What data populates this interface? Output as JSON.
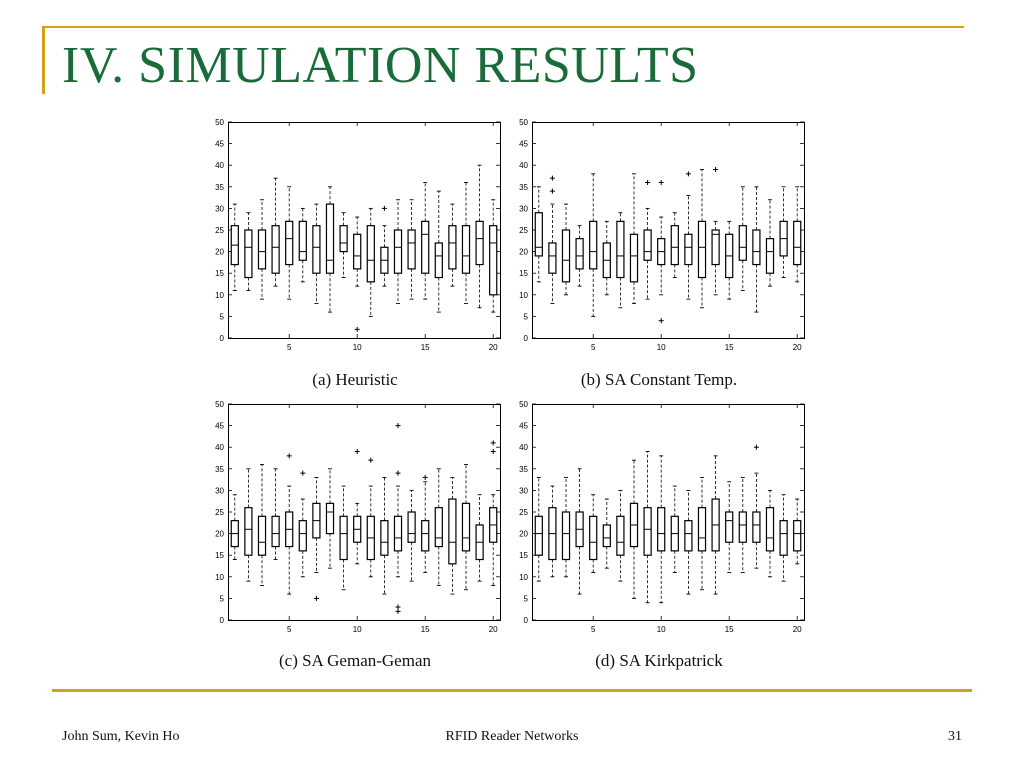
{
  "slide": {
    "title": "IV. SIMULATION RESULTS",
    "footer_left": "John Sum, Kevin Ho",
    "footer_center": "RFID Reader Networks",
    "footer_right": "31",
    "title_color": "#1a6b3a",
    "accent_color": "#d4a020"
  },
  "chart_data": [
    {
      "type": "box",
      "title": "(a) Heuristic",
      "x_ticks": [
        5,
        10,
        15,
        20
      ],
      "ylim": [
        0,
        50
      ],
      "y_ticks": [
        0,
        5,
        10,
        15,
        20,
        25,
        30,
        35,
        40,
        45,
        50
      ],
      "boxes": [
        {
          "x": 1,
          "min": 11,
          "q1": 17,
          "med": 21.5,
          "q3": 26,
          "max": 31,
          "outliers": []
        },
        {
          "x": 2,
          "min": 11,
          "q1": 14,
          "med": 21,
          "q3": 25,
          "max": 29,
          "outliers": []
        },
        {
          "x": 3,
          "min": 9,
          "q1": 16,
          "med": 20,
          "q3": 25,
          "max": 32,
          "outliers": []
        },
        {
          "x": 4,
          "min": 12,
          "q1": 15,
          "med": 21,
          "q3": 26,
          "max": 37,
          "outliers": []
        },
        {
          "x": 5,
          "min": 9,
          "q1": 17,
          "med": 23,
          "q3": 27,
          "max": 35,
          "outliers": []
        },
        {
          "x": 6,
          "min": 13,
          "q1": 18,
          "med": 20,
          "q3": 27,
          "max": 30,
          "outliers": []
        },
        {
          "x": 7,
          "min": 8,
          "q1": 15,
          "med": 21,
          "q3": 26,
          "max": 31,
          "outliers": []
        },
        {
          "x": 8,
          "min": 6,
          "q1": 15,
          "med": 18,
          "q3": 31,
          "max": 35,
          "outliers": []
        },
        {
          "x": 9,
          "min": 14,
          "q1": 20,
          "med": 22,
          "q3": 26,
          "max": 29,
          "outliers": []
        },
        {
          "x": 10,
          "min": 12,
          "q1": 16,
          "med": 19,
          "q3": 24,
          "max": 28,
          "outliers": [
            2
          ]
        },
        {
          "x": 11,
          "min": 5,
          "q1": 13,
          "med": 18,
          "q3": 26,
          "max": 30,
          "outliers": []
        },
        {
          "x": 12,
          "min": 12,
          "q1": 15,
          "med": 18,
          "q3": 21,
          "max": 26,
          "outliers": [
            30
          ]
        },
        {
          "x": 13,
          "min": 8,
          "q1": 15,
          "med": 21,
          "q3": 25,
          "max": 32,
          "outliers": []
        },
        {
          "x": 14,
          "min": 9,
          "q1": 16,
          "med": 22,
          "q3": 25,
          "max": 32,
          "outliers": []
        },
        {
          "x": 15,
          "min": 9,
          "q1": 15,
          "med": 24,
          "q3": 27,
          "max": 36,
          "outliers": []
        },
        {
          "x": 16,
          "min": 6,
          "q1": 14,
          "med": 19,
          "q3": 22,
          "max": 34,
          "outliers": []
        },
        {
          "x": 17,
          "min": 12,
          "q1": 16,
          "med": 22,
          "q3": 26,
          "max": 31,
          "outliers": []
        },
        {
          "x": 18,
          "min": 8,
          "q1": 15,
          "med": 19,
          "q3": 26,
          "max": 36,
          "outliers": []
        },
        {
          "x": 19,
          "min": 7,
          "q1": 17,
          "med": 23,
          "q3": 27,
          "max": 40,
          "outliers": []
        },
        {
          "x": 20,
          "min": 6,
          "q1": 10,
          "med": 22,
          "q3": 26,
          "max": 32,
          "outliers": []
        }
      ]
    },
    {
      "type": "box",
      "title": "(b) SA Constant Temp.",
      "x_ticks": [
        5,
        10,
        15,
        20
      ],
      "ylim": [
        0,
        50
      ],
      "y_ticks": [
        0,
        5,
        10,
        15,
        20,
        25,
        30,
        35,
        40,
        45,
        50
      ],
      "boxes": [
        {
          "x": 1,
          "min": 13,
          "q1": 19,
          "med": 21,
          "q3": 29,
          "max": 35,
          "outliers": []
        },
        {
          "x": 2,
          "min": 8,
          "q1": 15,
          "med": 19,
          "q3": 22,
          "max": 31,
          "outliers": [
            34,
            37
          ]
        },
        {
          "x": 3,
          "min": 10,
          "q1": 13,
          "med": 18,
          "q3": 25,
          "max": 31,
          "outliers": []
        },
        {
          "x": 4,
          "min": 12,
          "q1": 16,
          "med": 19,
          "q3": 23,
          "max": 26,
          "outliers": []
        },
        {
          "x": 5,
          "min": 5,
          "q1": 16,
          "med": 20,
          "q3": 27,
          "max": 38,
          "outliers": []
        },
        {
          "x": 6,
          "min": 10,
          "q1": 14,
          "med": 18,
          "q3": 22,
          "max": 27,
          "outliers": []
        },
        {
          "x": 7,
          "min": 7,
          "q1": 14,
          "med": 19,
          "q3": 27,
          "max": 29,
          "outliers": []
        },
        {
          "x": 8,
          "min": 8,
          "q1": 13,
          "med": 19,
          "q3": 24,
          "max": 38,
          "outliers": []
        },
        {
          "x": 9,
          "min": 9,
          "q1": 18,
          "med": 20,
          "q3": 25,
          "max": 30,
          "outliers": [
            36
          ]
        },
        {
          "x": 10,
          "min": 10,
          "q1": 17,
          "med": 20,
          "q3": 23,
          "max": 28,
          "outliers": [
            4,
            36
          ]
        },
        {
          "x": 11,
          "min": 14,
          "q1": 17,
          "med": 21,
          "q3": 26,
          "max": 29,
          "outliers": []
        },
        {
          "x": 12,
          "min": 9,
          "q1": 17,
          "med": 21,
          "q3": 24,
          "max": 33,
          "outliers": [
            38
          ]
        },
        {
          "x": 13,
          "min": 7,
          "q1": 14,
          "med": 21,
          "q3": 27,
          "max": 39,
          "outliers": []
        },
        {
          "x": 14,
          "min": 10,
          "q1": 17,
          "med": 24,
          "q3": 25,
          "max": 27,
          "outliers": [
            39
          ]
        },
        {
          "x": 15,
          "min": 9,
          "q1": 14,
          "med": 19,
          "q3": 24,
          "max": 27,
          "outliers": []
        },
        {
          "x": 16,
          "min": 11,
          "q1": 18,
          "med": 21,
          "q3": 26,
          "max": 35,
          "outliers": []
        },
        {
          "x": 17,
          "min": 6,
          "q1": 17,
          "med": 20,
          "q3": 25,
          "max": 35,
          "outliers": []
        },
        {
          "x": 18,
          "min": 12,
          "q1": 15,
          "med": 20,
          "q3": 23,
          "max": 32,
          "outliers": []
        },
        {
          "x": 19,
          "min": 14,
          "q1": 19,
          "med": 23,
          "q3": 27,
          "max": 35,
          "outliers": []
        },
        {
          "x": 20,
          "min": 13,
          "q1": 17,
          "med": 21,
          "q3": 27,
          "max": 35,
          "outliers": []
        }
      ]
    },
    {
      "type": "box",
      "title": "(c) SA Geman-Geman",
      "x_ticks": [
        5,
        10,
        15,
        20
      ],
      "ylim": [
        0,
        50
      ],
      "y_ticks": [
        0,
        5,
        10,
        15,
        20,
        25,
        30,
        35,
        40,
        45,
        50
      ],
      "boxes": [
        {
          "x": 1,
          "min": 14,
          "q1": 17,
          "med": 20,
          "q3": 23,
          "max": 29,
          "outliers": []
        },
        {
          "x": 2,
          "min": 9,
          "q1": 15,
          "med": 21,
          "q3": 26,
          "max": 35,
          "outliers": []
        },
        {
          "x": 3,
          "min": 8,
          "q1": 15,
          "med": 18,
          "q3": 24,
          "max": 36,
          "outliers": []
        },
        {
          "x": 4,
          "min": 14,
          "q1": 17,
          "med": 20,
          "q3": 24,
          "max": 35,
          "outliers": []
        },
        {
          "x": 5,
          "min": 6,
          "q1": 17,
          "med": 21,
          "q3": 25,
          "max": 31,
          "outliers": [
            38
          ]
        },
        {
          "x": 6,
          "min": 10,
          "q1": 16,
          "med": 20,
          "q3": 23,
          "max": 28,
          "outliers": [
            34
          ]
        },
        {
          "x": 7,
          "min": 11,
          "q1": 19,
          "med": 23,
          "q3": 27,
          "max": 33,
          "outliers": [
            5
          ]
        },
        {
          "x": 8,
          "min": 12,
          "q1": 20,
          "med": 25,
          "q3": 27,
          "max": 35,
          "outliers": []
        },
        {
          "x": 9,
          "min": 7,
          "q1": 14,
          "med": 20,
          "q3": 24,
          "max": 31,
          "outliers": []
        },
        {
          "x": 10,
          "min": 13,
          "q1": 18,
          "med": 21,
          "q3": 24,
          "max": 27,
          "outliers": [
            39
          ]
        },
        {
          "x": 11,
          "min": 10,
          "q1": 14,
          "med": 19,
          "q3": 24,
          "max": 31,
          "outliers": [
            37
          ]
        },
        {
          "x": 12,
          "min": 6,
          "q1": 15,
          "med": 18,
          "q3": 23,
          "max": 33,
          "outliers": []
        },
        {
          "x": 13,
          "min": 10,
          "q1": 16,
          "med": 19,
          "q3": 24,
          "max": 31,
          "outliers": [
            2,
            3,
            34,
            45
          ]
        },
        {
          "x": 14,
          "min": 9,
          "q1": 18,
          "med": 20,
          "q3": 25,
          "max": 30,
          "outliers": []
        },
        {
          "x": 15,
          "min": 11,
          "q1": 16,
          "med": 20,
          "q3": 23,
          "max": 32,
          "outliers": [
            33
          ]
        },
        {
          "x": 16,
          "min": 8,
          "q1": 17,
          "med": 19,
          "q3": 26,
          "max": 35,
          "outliers": []
        },
        {
          "x": 17,
          "min": 6,
          "q1": 13,
          "med": 18,
          "q3": 28,
          "max": 33,
          "outliers": []
        },
        {
          "x": 18,
          "min": 7,
          "q1": 16,
          "med": 19,
          "q3": 27,
          "max": 36,
          "outliers": []
        },
        {
          "x": 19,
          "min": 9,
          "q1": 14,
          "med": 18,
          "q3": 22,
          "max": 29,
          "outliers": []
        },
        {
          "x": 20,
          "min": 8,
          "q1": 18,
          "med": 22,
          "q3": 26,
          "max": 29,
          "outliers": [
            39,
            41
          ]
        }
      ]
    },
    {
      "type": "box",
      "title": "(d) SA Kirkpatrick",
      "x_ticks": [
        5,
        10,
        15,
        20
      ],
      "ylim": [
        0,
        50
      ],
      "y_ticks": [
        0,
        5,
        10,
        15,
        20,
        25,
        30,
        35,
        40,
        45,
        50
      ],
      "boxes": [
        {
          "x": 1,
          "min": 9,
          "q1": 15,
          "med": 20,
          "q3": 24,
          "max": 33,
          "outliers": []
        },
        {
          "x": 2,
          "min": 10,
          "q1": 14,
          "med": 20,
          "q3": 26,
          "max": 31,
          "outliers": []
        },
        {
          "x": 3,
          "min": 10,
          "q1": 14,
          "med": 20,
          "q3": 25,
          "max": 33,
          "outliers": []
        },
        {
          "x": 4,
          "min": 6,
          "q1": 17,
          "med": 21,
          "q3": 25,
          "max": 35,
          "outliers": []
        },
        {
          "x": 5,
          "min": 11,
          "q1": 14,
          "med": 18,
          "q3": 24,
          "max": 29,
          "outliers": []
        },
        {
          "x": 6,
          "min": 12,
          "q1": 17,
          "med": 19,
          "q3": 22,
          "max": 28,
          "outliers": []
        },
        {
          "x": 7,
          "min": 9,
          "q1": 15,
          "med": 18,
          "q3": 24,
          "max": 30,
          "outliers": []
        },
        {
          "x": 8,
          "min": 5,
          "q1": 17,
          "med": 22,
          "q3": 27,
          "max": 37,
          "outliers": []
        },
        {
          "x": 9,
          "min": 4,
          "q1": 15,
          "med": 21,
          "q3": 26,
          "max": 39,
          "outliers": []
        },
        {
          "x": 10,
          "min": 4,
          "q1": 16,
          "med": 20,
          "q3": 26,
          "max": 38,
          "outliers": []
        },
        {
          "x": 11,
          "min": 11,
          "q1": 16,
          "med": 20,
          "q3": 24,
          "max": 31,
          "outliers": []
        },
        {
          "x": 12,
          "min": 6,
          "q1": 16,
          "med": 20,
          "q3": 23,
          "max": 30,
          "outliers": []
        },
        {
          "x": 13,
          "min": 7,
          "q1": 16,
          "med": 19,
          "q3": 26,
          "max": 33,
          "outliers": []
        },
        {
          "x": 14,
          "min": 6,
          "q1": 16,
          "med": 22,
          "q3": 28,
          "max": 38,
          "outliers": []
        },
        {
          "x": 15,
          "min": 11,
          "q1": 18,
          "med": 23,
          "q3": 25,
          "max": 32,
          "outliers": []
        },
        {
          "x": 16,
          "min": 11,
          "q1": 18,
          "med": 22,
          "q3": 25,
          "max": 33,
          "outliers": []
        },
        {
          "x": 17,
          "min": 12,
          "q1": 18,
          "med": 22,
          "q3": 25,
          "max": 34,
          "outliers": [
            40
          ]
        },
        {
          "x": 18,
          "min": 10,
          "q1": 16,
          "med": 19,
          "q3": 26,
          "max": 30,
          "outliers": []
        },
        {
          "x": 19,
          "min": 9,
          "q1": 15,
          "med": 20,
          "q3": 23,
          "max": 29,
          "outliers": []
        },
        {
          "x": 20,
          "min": 13,
          "q1": 16,
          "med": 20,
          "q3": 23,
          "max": 28,
          "outliers": []
        }
      ]
    }
  ]
}
